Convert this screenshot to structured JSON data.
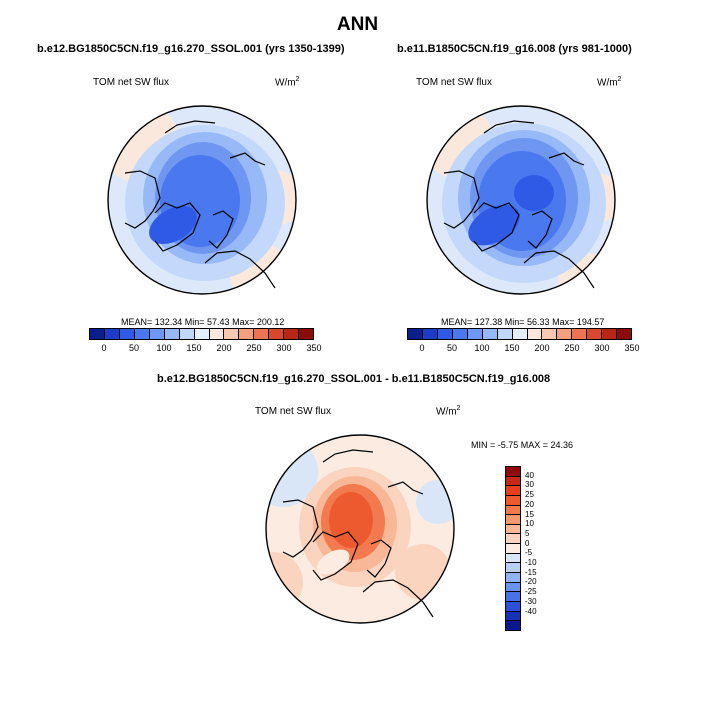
{
  "title": "ANN",
  "panels": [
    {
      "case_title": "b.e12.BG1850C5CN.f19_g16.270_SSOL.001 (yrs 1350-1399)",
      "variable": "TOM net SW flux",
      "units_base": "W/m",
      "units_exp": "2",
      "stats": "MEAN= 132.34  Min=  57.43  Max= 200.12",
      "colorbar_colors": [
        "#0a1e8c",
        "#1b3cc8",
        "#2f5ae6",
        "#4a78f0",
        "#6e98f4",
        "#96b8f8",
        "#c0d6fa",
        "#e6f0fc",
        "#fce8dc",
        "#f8c8b0",
        "#f4a07e",
        "#ec7452",
        "#d84830",
        "#b82618",
        "#8c0c0c"
      ],
      "colorbar_labels": [
        "0",
        "50",
        "100",
        "150",
        "200",
        "250",
        "300",
        "350"
      ]
    },
    {
      "case_title": "b.e11.B1850C5CN.f19_g16.008 (yrs 981-1000)",
      "variable": "TOM net SW flux",
      "units_base": "W/m",
      "units_exp": "2",
      "stats": "MEAN= 127.38  Min=  56.33  Max= 194.57",
      "colorbar_colors": [
        "#0a1e8c",
        "#1b3cc8",
        "#2f5ae6",
        "#4a78f0",
        "#6e98f4",
        "#96b8f8",
        "#c0d6fa",
        "#e6f0fc",
        "#fce8dc",
        "#f8c8b0",
        "#f4a07e",
        "#ec7452",
        "#d84830",
        "#b82618",
        "#8c0c0c"
      ],
      "colorbar_labels": [
        "0",
        "50",
        "100",
        "150",
        "200",
        "250",
        "300",
        "350"
      ]
    }
  ],
  "diff_panel": {
    "case_title": "b.e12.BG1850C5CN.f19_g16.270_SSOL.001 - b.e11.B1850C5CN.f19_g16.008",
    "variable": "TOM net SW flux",
    "units_base": "W/m",
    "units_exp": "2",
    "stats": "MIN =  -5.75 MAX =  24.36",
    "colorbar_colors": [
      "#8c0c0c",
      "#c82818",
      "#e44020",
      "#ee5a30",
      "#f27a4e",
      "#f49a72",
      "#f8b898",
      "#fad4be",
      "#fcebe0",
      "#d8e6f8",
      "#b8d0f6",
      "#90b4f2",
      "#6a94ee",
      "#4872e6",
      "#2c50d8",
      "#1632b4",
      "#0a1a8c"
    ],
    "colorbar_labels": [
      "40",
      "30",
      "25",
      "20",
      "15",
      "10",
      "5",
      "0",
      "-5",
      "-10",
      "-15",
      "-20",
      "-25",
      "-30",
      "-40"
    ]
  }
}
